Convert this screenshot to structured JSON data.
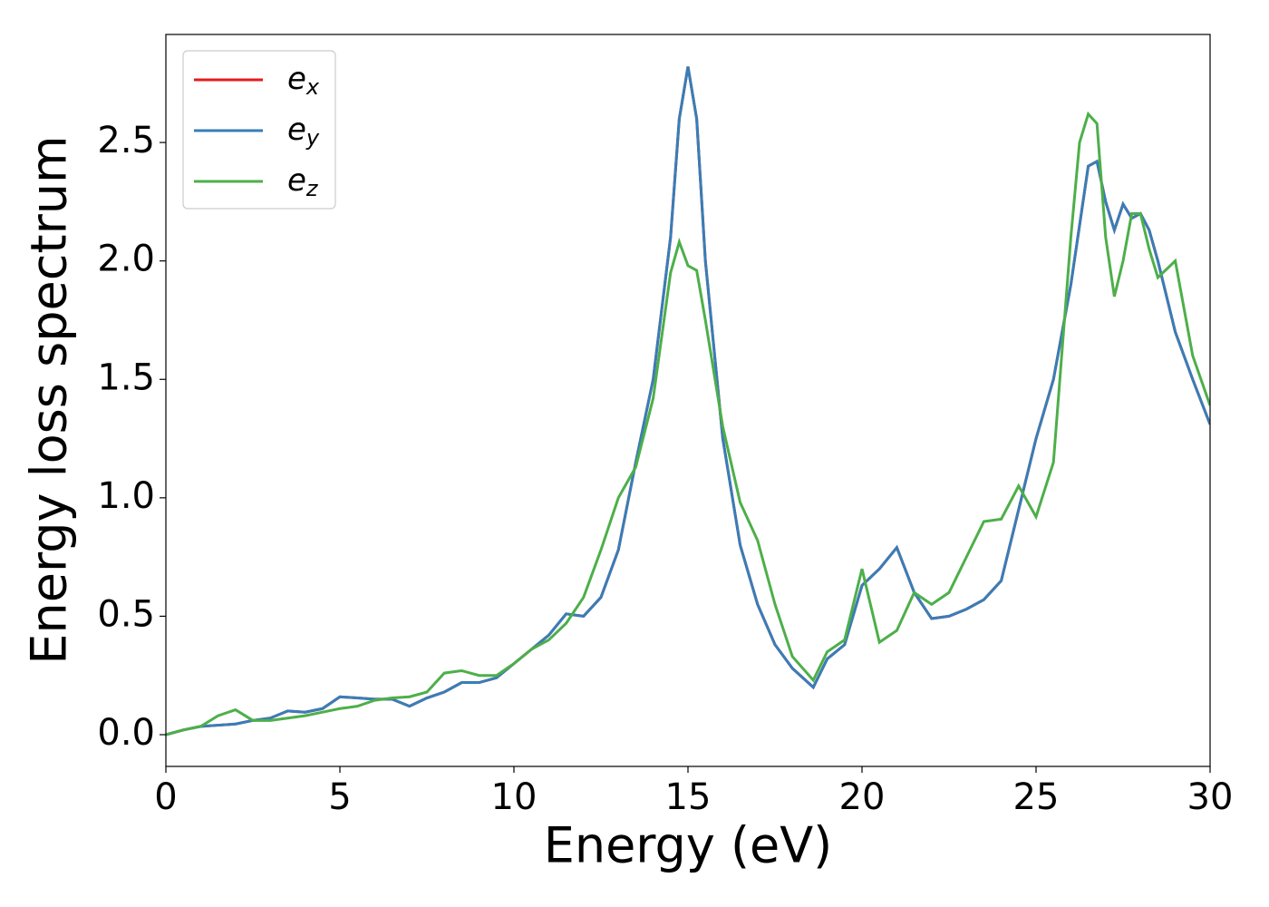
{
  "chart_data": {
    "type": "line",
    "xlabel": "Energy (eV)",
    "ylabel": "Energy loss spectrum",
    "x": [
      0,
      0.5,
      1,
      1.5,
      2,
      2.5,
      3,
      3.5,
      4,
      4.5,
      5,
      5.5,
      6,
      6.5,
      7,
      7.5,
      8,
      8.5,
      9,
      9.5,
      10,
      10.5,
      11,
      11.5,
      12,
      12.5,
      13,
      13.5,
      14,
      14.5,
      14.75,
      15,
      15.25,
      15.5,
      16,
      16.5,
      17,
      17.5,
      18,
      18.6,
      19,
      19.5,
      20,
      20.5,
      21,
      21.5,
      22,
      22.5,
      23,
      23.5,
      24,
      24.5,
      25,
      25.5,
      26,
      26.25,
      26.5,
      26.75,
      27,
      27.25,
      27.5,
      27.75,
      28,
      28.25,
      28.5,
      29,
      29.5,
      30
    ],
    "series": [
      {
        "name": "e_x",
        "color": "#e41a1c",
        "values": [
          0,
          0.02,
          0.035,
          0.04,
          0.045,
          0.06,
          0.07,
          0.1,
          0.095,
          0.11,
          0.16,
          0.155,
          0.15,
          0.15,
          0.12,
          0.155,
          0.18,
          0.22,
          0.22,
          0.24,
          0.3,
          0.36,
          0.42,
          0.51,
          0.5,
          0.58,
          0.78,
          1.15,
          1.5,
          2.1,
          2.6,
          2.82,
          2.6,
          2.0,
          1.25,
          0.8,
          0.55,
          0.38,
          0.28,
          0.2,
          0.32,
          0.38,
          0.63,
          0.7,
          0.79,
          0.6,
          0.49,
          0.5,
          0.53,
          0.57,
          0.65,
          0.95,
          1.25,
          1.5,
          1.9,
          2.15,
          2.4,
          2.42,
          2.25,
          2.13,
          2.24,
          2.18,
          2.2,
          2.13,
          2.0,
          1.7,
          1.5,
          1.31
        ]
      },
      {
        "name": "e_y",
        "color": "#377eb8",
        "values": [
          0,
          0.02,
          0.035,
          0.04,
          0.045,
          0.06,
          0.07,
          0.1,
          0.095,
          0.11,
          0.16,
          0.155,
          0.15,
          0.15,
          0.12,
          0.155,
          0.18,
          0.22,
          0.22,
          0.24,
          0.3,
          0.36,
          0.42,
          0.51,
          0.5,
          0.58,
          0.78,
          1.15,
          1.5,
          2.1,
          2.6,
          2.82,
          2.6,
          2.0,
          1.25,
          0.8,
          0.55,
          0.38,
          0.28,
          0.2,
          0.32,
          0.38,
          0.63,
          0.7,
          0.79,
          0.6,
          0.49,
          0.5,
          0.53,
          0.57,
          0.65,
          0.95,
          1.25,
          1.5,
          1.9,
          2.15,
          2.4,
          2.42,
          2.25,
          2.13,
          2.24,
          2.18,
          2.2,
          2.13,
          2.0,
          1.7,
          1.5,
          1.31
        ]
      },
      {
        "name": "e_z",
        "color": "#4daf4a",
        "values": [
          0,
          0.02,
          0.035,
          0.08,
          0.105,
          0.06,
          0.06,
          0.07,
          0.08,
          0.095,
          0.11,
          0.12,
          0.145,
          0.155,
          0.16,
          0.18,
          0.26,
          0.27,
          0.25,
          0.25,
          0.3,
          0.36,
          0.4,
          0.47,
          0.58,
          0.78,
          1.0,
          1.13,
          1.42,
          1.95,
          2.08,
          1.98,
          1.96,
          1.75,
          1.3,
          0.98,
          0.82,
          0.55,
          0.33,
          0.23,
          0.35,
          0.4,
          0.7,
          0.39,
          0.44,
          0.6,
          0.55,
          0.6,
          0.75,
          0.9,
          0.91,
          1.05,
          0.92,
          1.15,
          2.1,
          2.5,
          2.62,
          2.58,
          2.1,
          1.85,
          2.0,
          2.2,
          2.2,
          2.05,
          1.93,
          2.0,
          1.6,
          1.39
        ]
      }
    ],
    "xlim": [
      0,
      30
    ],
    "xticks": [
      0,
      5,
      10,
      15,
      20,
      25,
      30
    ],
    "ylim": [
      -0.134,
      2.956
    ],
    "yticks": [
      {
        "value": 0,
        "label": "0.0"
      },
      0.5,
      {
        "value": 1,
        "label": "1.0"
      },
      1.5,
      {
        "value": 2,
        "label": "2.0"
      },
      2.5
    ],
    "grid": false,
    "legend": "upper left"
  }
}
